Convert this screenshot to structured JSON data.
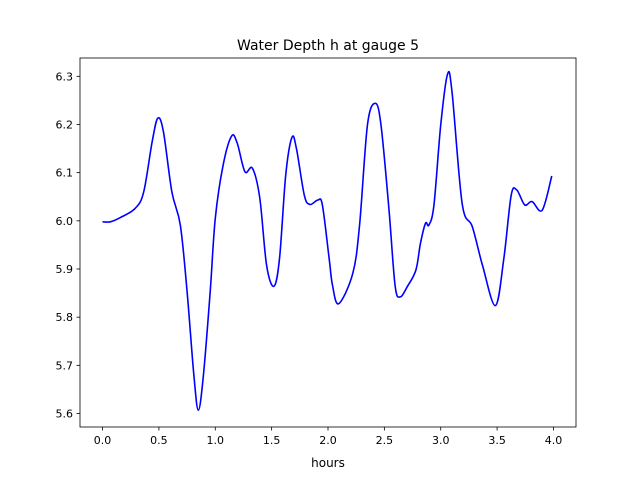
{
  "chart_data": {
    "type": "line",
    "title": "Water Depth h at gauge 5",
    "xlabel": "hours",
    "ylabel": "",
    "xlim": [
      -0.2,
      4.2
    ],
    "ylim": [
      5.572,
      6.338
    ],
    "xticks": [
      0.0,
      0.5,
      1.0,
      1.5,
      2.0,
      2.5,
      3.0,
      3.5,
      4.0
    ],
    "xtick_labels": [
      "0.0",
      "0.5",
      "1.0",
      "1.5",
      "2.0",
      "2.5",
      "3.0",
      "3.5",
      "4.0"
    ],
    "yticks": [
      5.6,
      5.7,
      5.8,
      5.9,
      6.0,
      6.1,
      6.2,
      6.3
    ],
    "ytick_labels": [
      "5.6",
      "5.7",
      "5.8",
      "5.9",
      "6.0",
      "6.1",
      "6.2",
      "6.3"
    ],
    "grid": false,
    "series": [
      {
        "name": "h",
        "color": "#0000ff",
        "x": [
          0.0,
          0.07,
          0.16,
          0.29,
          0.365,
          0.44,
          0.49,
          0.54,
          0.615,
          0.69,
          0.75,
          0.81,
          0.85,
          0.895,
          0.955,
          1.0,
          1.07,
          1.145,
          1.195,
          1.263,
          1.33,
          1.395,
          1.455,
          1.52,
          1.57,
          1.625,
          1.68,
          1.72,
          1.79,
          1.84,
          1.91,
          1.95,
          2.01,
          2.04,
          2.095,
          2.22,
          2.28,
          2.35,
          2.42,
          2.47,
          2.54,
          2.595,
          2.64,
          2.705,
          2.78,
          2.82,
          2.865,
          2.895,
          2.94,
          3.0,
          3.06,
          3.1,
          3.19,
          3.28,
          3.37,
          3.485,
          3.56,
          3.625,
          3.675,
          3.745,
          3.81,
          3.9,
          3.985
        ],
        "y": [
          5.998,
          5.998,
          6.007,
          6.026,
          6.06,
          6.164,
          6.213,
          6.185,
          6.06,
          5.991,
          5.853,
          5.68,
          5.607,
          5.68,
          5.853,
          6.005,
          6.116,
          6.176,
          6.161,
          6.102,
          6.109,
          6.047,
          5.908,
          5.864,
          5.922,
          6.095,
          6.173,
          6.15,
          6.053,
          6.034,
          6.043,
          6.033,
          5.922,
          5.866,
          5.828,
          5.891,
          5.991,
          6.199,
          6.244,
          6.199,
          6.026,
          5.866,
          5.842,
          5.864,
          5.898,
          5.953,
          5.995,
          5.991,
          6.033,
          6.199,
          6.304,
          6.268,
          6.036,
          5.988,
          5.908,
          5.824,
          5.922,
          6.053,
          6.064,
          6.033,
          6.04,
          6.022,
          6.093
        ]
      }
    ]
  }
}
